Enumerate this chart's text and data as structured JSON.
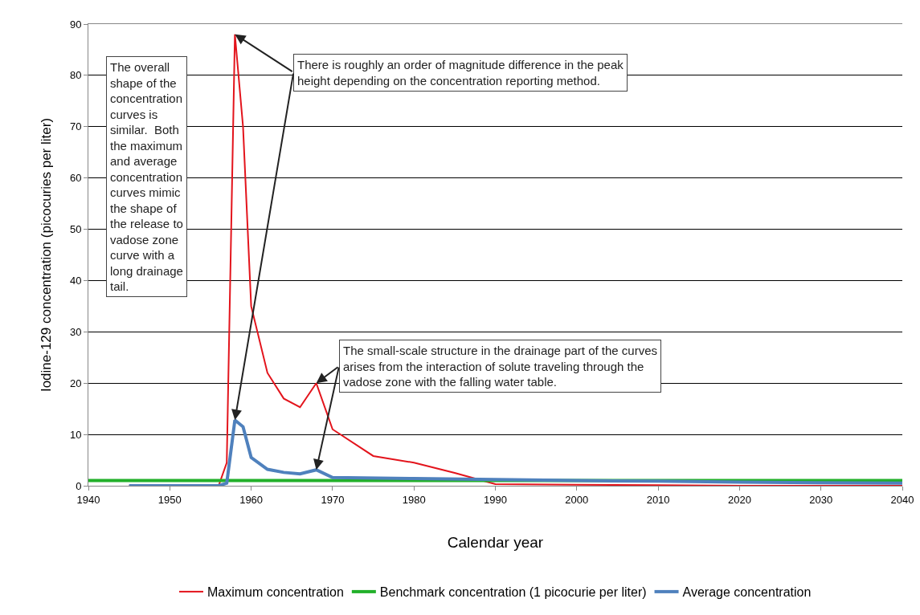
{
  "chart_data": {
    "type": "line",
    "xlabel": "Calendar year",
    "ylabel": "Iodine-129 concentration (picocuries per liter)",
    "xlim": [
      1940,
      2040
    ],
    "xticks": [
      1940,
      1950,
      1960,
      1970,
      1980,
      1990,
      2000,
      2010,
      2020,
      2030,
      2040
    ],
    "ylim": [
      0,
      90
    ],
    "yticks": [
      0,
      10,
      20,
      30,
      40,
      50,
      60,
      70,
      80,
      90
    ],
    "grid": "y",
    "legend": "bottom",
    "marker": "none",
    "line_style": "solid",
    "series": [
      {
        "name": "Maximum concentration",
        "color": "#e3141c",
        "x": [
          1945,
          1956,
          1957,
          1958,
          1959,
          1960,
          1962,
          1964,
          1966,
          1968,
          1970,
          1975,
          1980,
          1985,
          1990,
          2000,
          2010,
          2020,
          2040
        ],
        "values": [
          0,
          0,
          4.5,
          88,
          70,
          35,
          22,
          17,
          15.3,
          20,
          11,
          5.8,
          4.5,
          2.5,
          0.3,
          0.2,
          0.1,
          0,
          0
        ]
      },
      {
        "name": "Benchmark concentration (1 picocurie per liter)",
        "color": "#22b02a",
        "x": [
          1940,
          2040
        ],
        "values": [
          1,
          1
        ]
      },
      {
        "name": "Average concentration",
        "color": "#4f81bd",
        "x": [
          1945,
          1956,
          1957,
          1958,
          1959,
          1960,
          1962,
          1964,
          1966,
          1968,
          1970,
          1980,
          1990,
          2000,
          2010,
          2020,
          2040
        ],
        "values": [
          0,
          0,
          0.5,
          12.8,
          11.5,
          5.5,
          3.2,
          2.6,
          2.3,
          3.1,
          1.6,
          1.4,
          1.2,
          1.0,
          0.9,
          0.7,
          0.5
        ]
      }
    ],
    "annotations": [
      "The overall shape of the concentration curves is similar.  Both the maximum and average concentration curves mimic the shape of the release to vadose zone curve with a long drainage tail.",
      {
        "text": "There is roughly an order of magnitude difference in the peak height depending on the concentration reporting method.",
        "x": 1958,
        "y": 88
      },
      {
        "text": "The small-scale structure in the drainage part of the curves arises from the interaction of solute traveling through the vadose zone with the falling water table.",
        "x": 1968,
        "y": 20
      }
    ]
  }
}
